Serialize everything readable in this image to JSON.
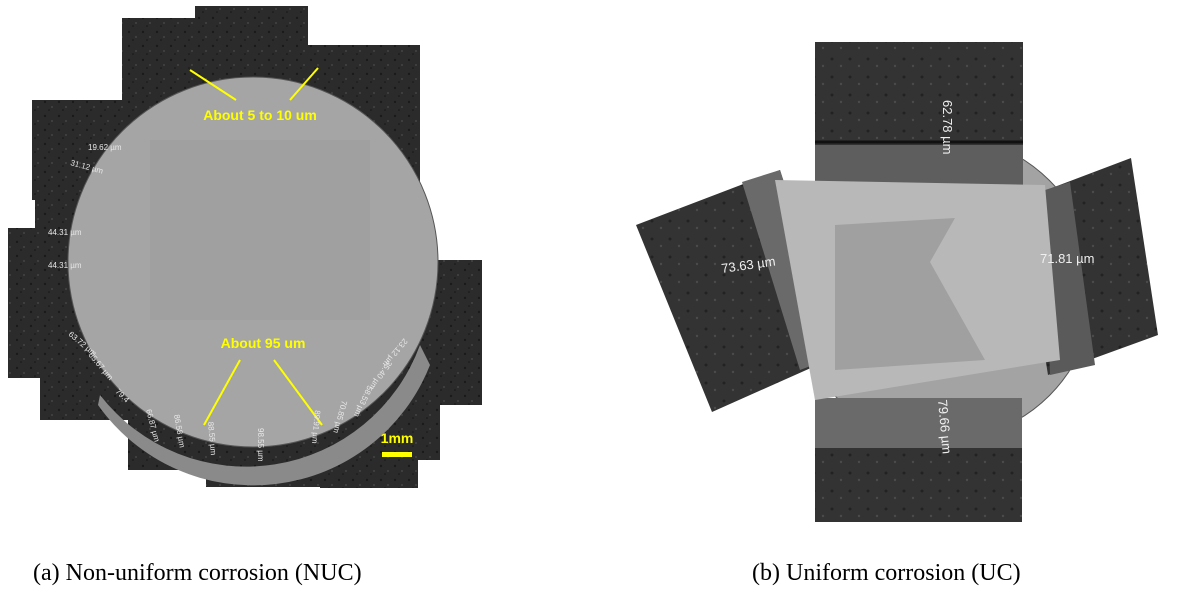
{
  "panels": [
    {
      "caption": "(a) Non-uniform corrosion (NUC)",
      "annotations": [
        "About 5 to 10 um",
        "About 95 um"
      ],
      "scale_bar": "1mm",
      "measurements": [
        "19.62 µm",
        "31.12 µm",
        "44.31 µm",
        "44.31 µm",
        "63.72 µm",
        "65.67 µm",
        "79.4",
        "66.87 µm",
        "86.58 µm",
        "88.55 µm",
        "98.55 µm",
        "89.91 µm",
        "70.85 µm",
        "58.53 µm",
        "35.40 µm",
        "23.12 µm"
      ]
    },
    {
      "caption": "(b) Uniform corrosion (UC)",
      "measurements": [
        "62.78 µm",
        "73.63 µm",
        "71.81 µm",
        "79.66 µm"
      ]
    }
  ]
}
